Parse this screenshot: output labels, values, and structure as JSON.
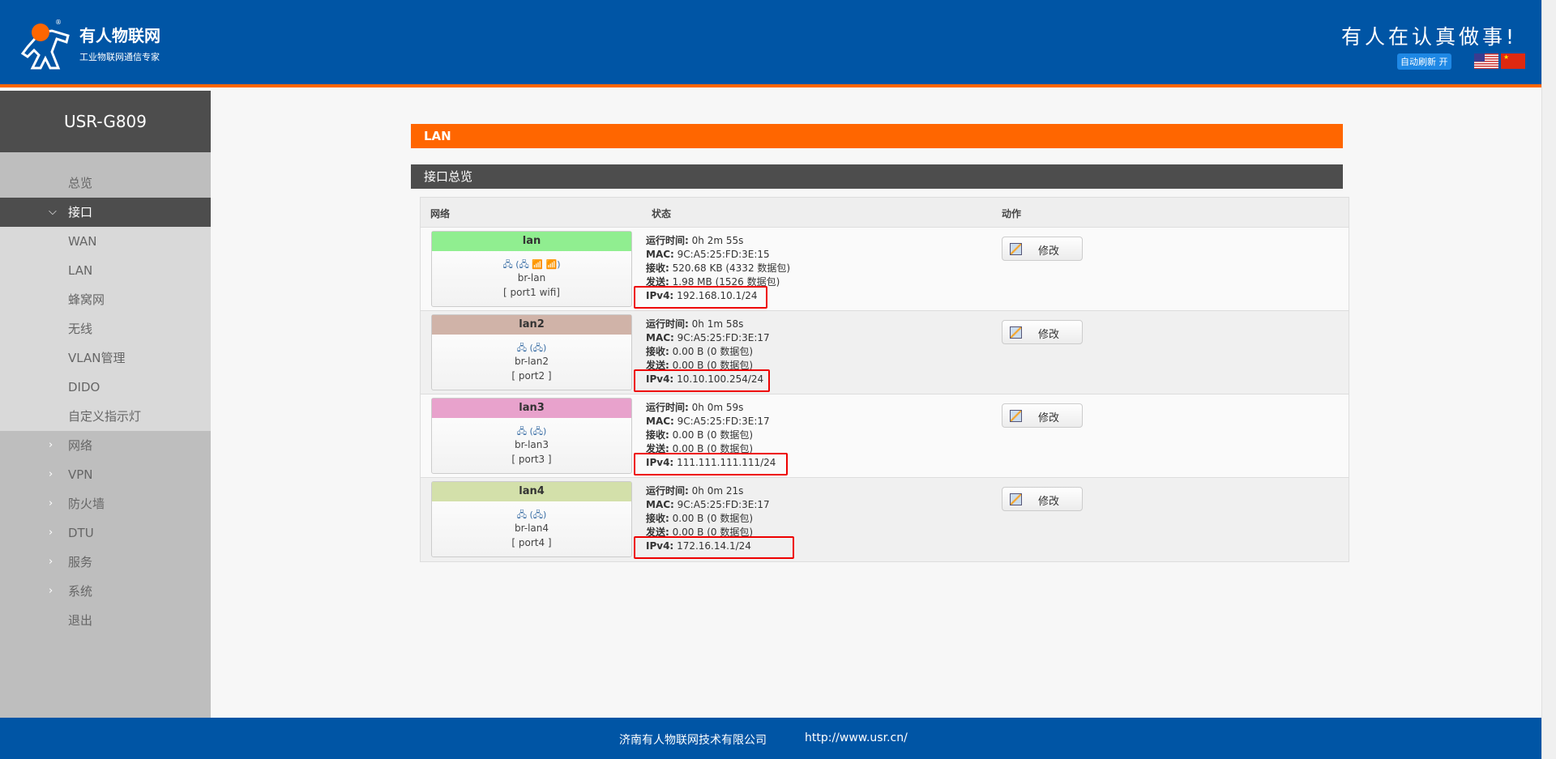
{
  "header": {
    "brand": "有人物联网",
    "brand_sub": "工业物联网通信专家",
    "slogan": "有人在认真做事!",
    "auto_refresh": "自动刷新 开",
    "lang_flags": [
      "us-flag",
      "cn-flag"
    ]
  },
  "sidebar": {
    "title": "USR-G809",
    "items": [
      {
        "label": "总览",
        "type": "top"
      },
      {
        "label": "接口",
        "type": "active",
        "chevron": "⌵"
      },
      {
        "label": "WAN",
        "type": "sub"
      },
      {
        "label": "LAN",
        "type": "sub"
      },
      {
        "label": "蜂窝网",
        "type": "sub"
      },
      {
        "label": "无线",
        "type": "sub"
      },
      {
        "label": "VLAN管理",
        "type": "sub"
      },
      {
        "label": "DIDO",
        "type": "sub"
      },
      {
        "label": "自定义指示灯",
        "type": "sub"
      },
      {
        "label": "网络",
        "type": "top",
        "chevron": "›"
      },
      {
        "label": "VPN",
        "type": "top",
        "chevron": "›"
      },
      {
        "label": "防火墙",
        "type": "top",
        "chevron": "›"
      },
      {
        "label": "DTU",
        "type": "top",
        "chevron": "›"
      },
      {
        "label": "服务",
        "type": "top",
        "chevron": "›"
      },
      {
        "label": "系统",
        "type": "top",
        "chevron": "›"
      },
      {
        "label": "退出",
        "type": "top"
      }
    ]
  },
  "page": {
    "title": "LAN",
    "section": "接口总览"
  },
  "table": {
    "headers": [
      "网络",
      "状态",
      "动作"
    ],
    "labels": {
      "uptime": "运行时间:",
      "mac": "MAC:",
      "rx": "接收:",
      "tx": "发送:",
      "ipv4": "IPv4:"
    },
    "edit_label": "修改",
    "rows": [
      {
        "name": "lan",
        "color": "#90ee90",
        "icons": "🖧 (🖧 📶 📶)",
        "device": "br-lan",
        "ports": "[ port1 wifi]",
        "uptime": "0h 2m 55s",
        "mac": "9C:A5:25:FD:3E:15",
        "rx": "520.68 KB (4332 数据包)",
        "tx": "1.98 MB (1526 数据包)",
        "ipv4": "192.168.10.1/24"
      },
      {
        "name": "lan2",
        "color": "#d0b3a8",
        "icons": "🖧 (🖧)",
        "device": "br-lan2",
        "ports": "[ port2 ]",
        "uptime": "0h 1m 58s",
        "mac": "9C:A5:25:FD:3E:17",
        "rx": "0.00 B (0 数据包)",
        "tx": "0.00 B (0 数据包)",
        "ipv4": "10.10.100.254/24"
      },
      {
        "name": "lan3",
        "color": "#e8a2cc",
        "icons": "🖧 (🖧)",
        "device": "br-lan3",
        "ports": "[ port3 ]",
        "uptime": "0h 0m 59s",
        "mac": "9C:A5:25:FD:3E:17",
        "rx": "0.00 B (0 数据包)",
        "tx": "0.00 B (0 数据包)",
        "ipv4": "111.111.111.111/24"
      },
      {
        "name": "lan4",
        "color": "#d3e0aa",
        "icons": "🖧 (🖧)",
        "device": "br-lan4",
        "ports": "[ port4 ]",
        "uptime": "0h 0m 21s",
        "mac": "9C:A5:25:FD:3E:17",
        "rx": "0.00 B (0 数据包)",
        "tx": "0.00 B (0 数据包)",
        "ipv4": "172.16.14.1/24"
      }
    ]
  },
  "footer": {
    "company": "济南有人物联网技术有限公司",
    "url": "http://www.usr.cn/"
  },
  "colors": {
    "header": "#0055a5",
    "accent": "#ff6600",
    "highlight_box": "#ee0000"
  }
}
